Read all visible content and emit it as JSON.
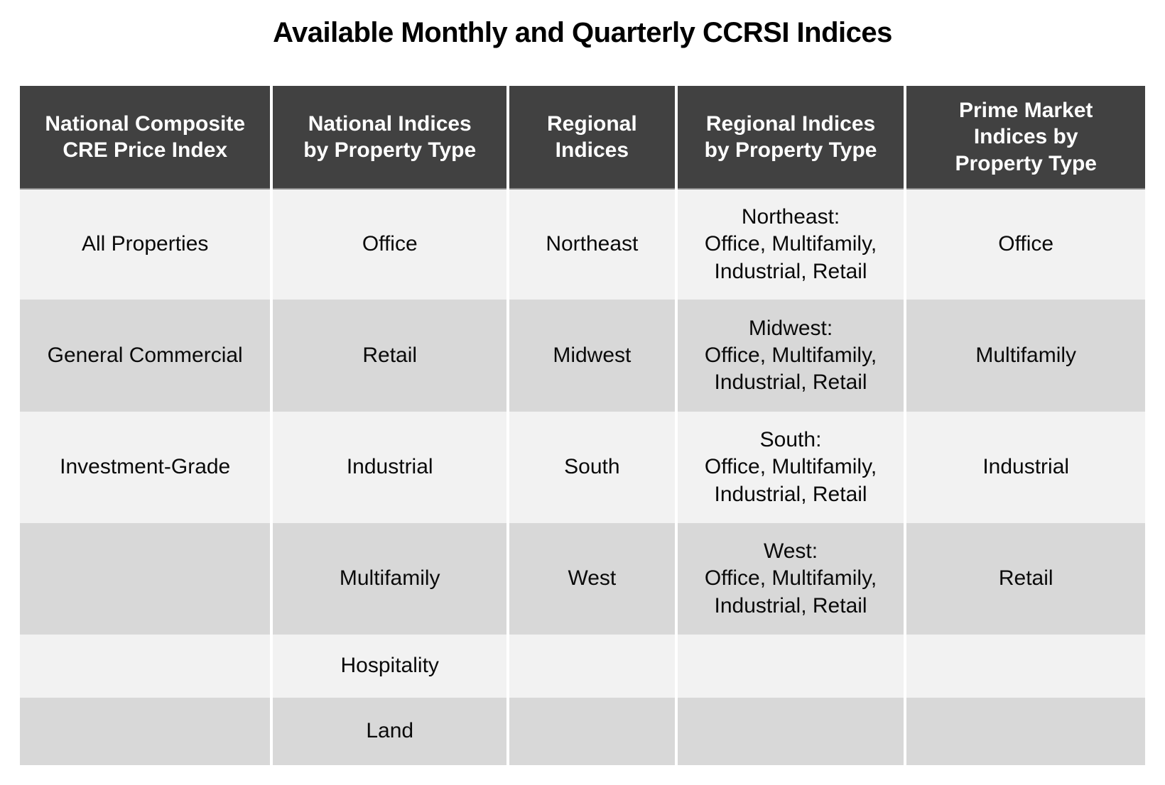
{
  "title": "Available Monthly and Quarterly CCRSI Indices",
  "chart_data": {
    "type": "table",
    "title": "Available Monthly and Quarterly CCRSI Indices",
    "columns": [
      "National Composite\nCRE Price Index",
      "National Indices\nby Property Type",
      "Regional\nIndices",
      "Regional Indices\nby Property Type",
      "Prime Market\nIndices by\nProperty Type"
    ],
    "rows": [
      [
        "All Properties",
        "Office",
        "Northeast",
        "Northeast:\nOffice, Multifamily,\nIndustrial, Retail",
        "Office"
      ],
      [
        "General Commercial",
        "Retail",
        "Midwest",
        "Midwest:\nOffice, Multifamily,\nIndustrial, Retail",
        "Multifamily"
      ],
      [
        "Investment-Grade",
        "Industrial",
        "South",
        "South:\nOffice, Multifamily,\nIndustrial, Retail",
        "Industrial"
      ],
      [
        "",
        "Multifamily",
        "West",
        "West:\nOffice, Multifamily,\nIndustrial, Retail",
        "Retail"
      ],
      [
        "",
        "Hospitality",
        "",
        "",
        ""
      ],
      [
        "",
        "Land",
        "",
        "",
        ""
      ]
    ]
  },
  "colors": {
    "header_bg": "#414141",
    "header_text": "#ffffff",
    "row_light_bg": "#f2f2f2",
    "row_dark_bg": "#d8d8d8",
    "body_text": "#0a0a0a",
    "title_text": "#000000",
    "column_separator": "#ffffff",
    "page_bg": "#ffffff"
  }
}
